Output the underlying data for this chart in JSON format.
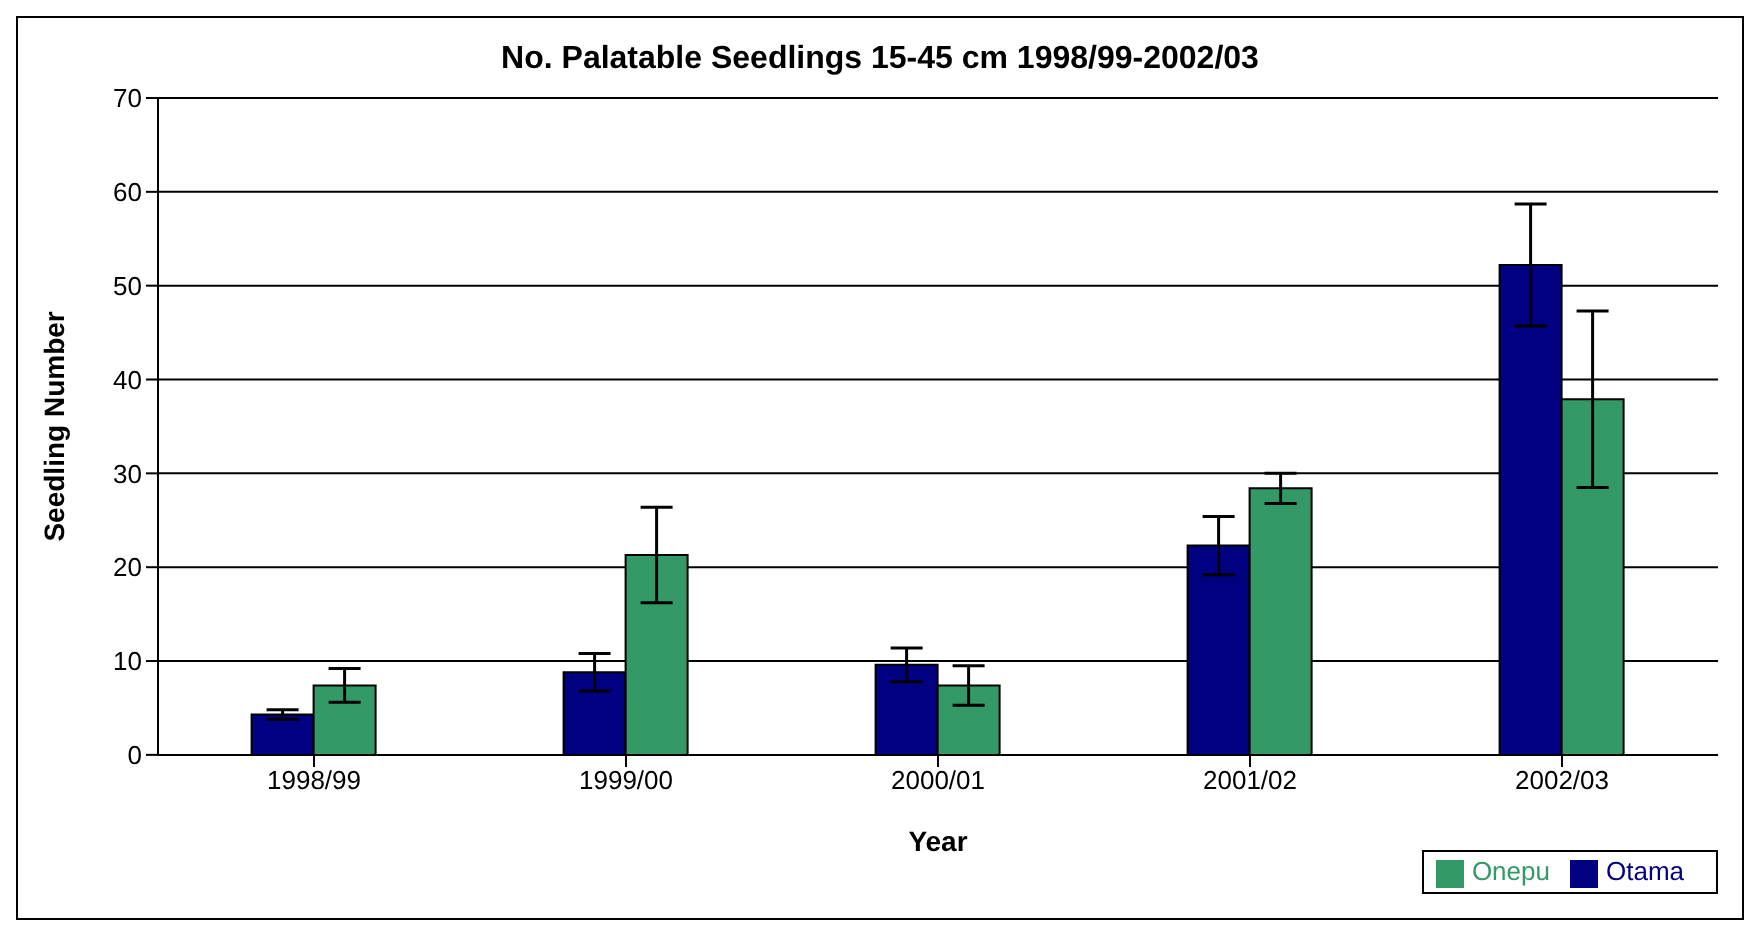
{
  "chart_data": {
    "type": "bar",
    "title": "No. Palatable Seedlings 15-45 cm 1998/99-2002/03",
    "xlabel": "Year",
    "ylabel": "Seedling Number",
    "categories": [
      "1998/99",
      "1999/00",
      "2000/01",
      "2001/02",
      "2002/03"
    ],
    "series": [
      {
        "name": "Otama",
        "color": "#000080",
        "values": [
          4.3,
          8.8,
          9.6,
          22.3,
          52.2
        ],
        "errors": [
          0.5,
          2,
          1.8,
          3.1,
          6.5
        ]
      },
      {
        "name": "Onepu",
        "color": "#339966",
        "values": [
          7.4,
          21.3,
          7.4,
          28.4,
          37.9
        ],
        "errors": [
          1.8,
          5.1,
          2.1,
          1.6,
          9.4
        ]
      }
    ],
    "ylim": [
      0,
      70
    ],
    "yticks": [
      0,
      10,
      20,
      30,
      40,
      50,
      60,
      70
    ],
    "grid": "y",
    "legend": "bottom right"
  }
}
